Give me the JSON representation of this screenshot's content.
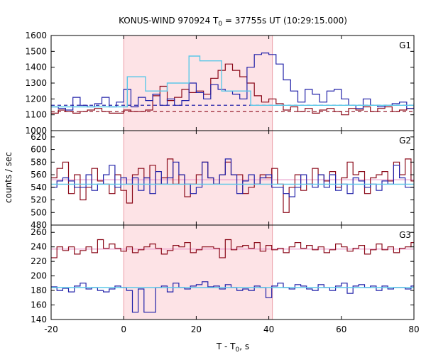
{
  "chart_data": {
    "type": "line",
    "title": "KONUS-WIND 970924 T",
    "title_sub": "0",
    "title_rest": " = 37755s UT (10:29:15.000)",
    "xlabel": "T - T",
    "xlabel_sub": "0",
    "xlabel_rest": ", s",
    "ylabel": "counts / sec",
    "xlim": [
      -20,
      80
    ],
    "xticks": [
      "-20",
      "0",
      "20",
      "40",
      "60",
      "80"
    ],
    "shaded_interval": [
      0,
      41
    ],
    "colors": {
      "red": "#8b0a1a",
      "blue": "#2020a8",
      "cyan": "#5bc8e8",
      "pink": "#e898c8",
      "shade": "#fde3e6"
    },
    "panels": [
      {
        "name": "G1",
        "ylim": [
          1000,
          1600
        ],
        "yticks": [
          "1000",
          "1100",
          "1200",
          "1300",
          "1400",
          "1500",
          "1600"
        ],
        "step": 2,
        "x_start": -20,
        "blue": [
          1150,
          1140,
          1130,
          1210,
          1160,
          1150,
          1170,
          1210,
          1150,
          1180,
          1260,
          1150,
          1210,
          1190,
          1230,
          1160,
          1200,
          1160,
          1190,
          1300,
          1240,
          1200,
          1290,
          1260,
          1250,
          1230,
          1200,
          1400,
          1480,
          1490,
          1480,
          1420,
          1320,
          1250,
          1180,
          1260,
          1230,
          1180,
          1250,
          1260,
          1200,
          1160,
          1140,
          1200,
          1160,
          1150,
          1160,
          1170,
          1180,
          1140,
          1170,
          1200,
          1140,
          1160,
          1150,
          1170,
          1160,
          1140,
          1160,
          1180
        ],
        "red": [
          1110,
          1130,
          1120,
          1110,
          1120,
          1130,
          1140,
          1120,
          1110,
          1110,
          1130,
          1120,
          1120,
          1130,
          1220,
          1280,
          1190,
          1210,
          1260,
          1240,
          1250,
          1230,
          1330,
          1380,
          1420,
          1380,
          1340,
          1300,
          1220,
          1180,
          1200,
          1170,
          1130,
          1150,
          1120,
          1140,
          1110,
          1130,
          1140,
          1120,
          1100,
          1140,
          1130,
          1150,
          1120,
          1140,
          1150,
          1120,
          1130,
          1140,
          1150,
          1130,
          1140,
          1130,
          1120,
          1140,
          1130,
          1120,
          1130,
          1140
        ],
        "cyan": [
          [
            -20,
            1150
          ],
          [
            1,
            1150
          ],
          [
            1,
            1340
          ],
          [
            6,
            1340
          ],
          [
            6,
            1250
          ],
          [
            12,
            1250
          ],
          [
            12,
            1300
          ],
          [
            18,
            1300
          ],
          [
            18,
            1470
          ],
          [
            21,
            1470
          ],
          [
            21,
            1440
          ],
          [
            27,
            1440
          ],
          [
            27,
            1250
          ],
          [
            35,
            1250
          ],
          [
            35,
            1160
          ],
          [
            80,
            1160
          ]
        ],
        "bg_blue": 1160,
        "bg_red": 1120,
        "dashed": true
      },
      {
        "name": "G2",
        "ylim": [
          480,
          630
        ],
        "yticks": [
          "480",
          "500",
          "520",
          "540",
          "560",
          "580",
          "600",
          "620"
        ],
        "step": 1.6,
        "x_start": -20,
        "blue": [
          540,
          550,
          555,
          550,
          540,
          540,
          560,
          535,
          545,
          560,
          575,
          540,
          555,
          545,
          555,
          535,
          555,
          530,
          565,
          545,
          555,
          580,
          560,
          545,
          530,
          540,
          580,
          555,
          545,
          560,
          585,
          560,
          530,
          550,
          560,
          545,
          555,
          560,
          540,
          540,
          530,
          525,
          540,
          560,
          545,
          540,
          560,
          540,
          560,
          535,
          545,
          530,
          555,
          550,
          540,
          545,
          535,
          550,
          545,
          575,
          555,
          540,
          540,
          555,
          520,
          560,
          540,
          560,
          545,
          540,
          530,
          545,
          555,
          540,
          545,
          535,
          530,
          570,
          555,
          610,
          540,
          530,
          560,
          545,
          545,
          555,
          535,
          545,
          560,
          540,
          540,
          550,
          540,
          540,
          560,
          550,
          545,
          545,
          535,
          540,
          545,
          545,
          545,
          540,
          555,
          555,
          560,
          560,
          565,
          550,
          540,
          555
        ],
        "red": [
          555,
          570,
          580,
          530,
          560,
          520,
          540,
          570,
          550,
          545,
          530,
          560,
          535,
          515,
          560,
          570,
          555,
          575,
          545,
          555,
          585,
          545,
          560,
          525,
          545,
          560,
          580,
          555,
          545,
          560,
          580,
          560,
          560,
          530,
          540,
          545,
          560,
          555,
          570,
          545,
          500,
          540,
          560,
          535,
          545,
          570,
          560,
          550,
          565,
          540,
          555,
          580,
          560,
          565,
          530,
          555,
          560,
          565,
          550,
          580,
          560,
          585,
          550,
          515,
          545,
          560,
          545,
          565,
          530,
          550,
          575,
          560,
          540,
          570,
          555,
          560,
          545,
          585,
          560,
          570,
          560,
          545,
          555,
          560,
          570,
          560,
          580,
          550,
          560,
          555,
          535,
          560,
          545,
          580,
          560,
          550,
          555,
          575,
          545,
          560,
          575,
          555,
          560,
          535,
          555,
          555,
          560,
          555,
          545,
          560,
          575,
          550
        ],
        "cyan": [
          [
            -20,
            545
          ],
          [
            80,
            545
          ]
        ],
        "pink": [
          [
            -20,
            552
          ],
          [
            80,
            552
          ]
        ],
        "dashed": false
      },
      {
        "name": "G3",
        "ylim": [
          140,
          270
        ],
        "yticks": [
          "140",
          "160",
          "180",
          "200",
          "220",
          "240",
          "260"
        ],
        "step": 1.6,
        "x_start": -20,
        "blue": [
          185,
          180,
          183,
          178,
          186,
          190,
          182,
          184,
          180,
          178,
          182,
          186,
          184,
          180,
          150,
          182,
          150,
          150,
          184,
          186,
          178,
          190,
          184,
          182,
          186,
          188,
          192,
          185,
          186,
          182,
          188,
          184,
          180,
          182,
          180,
          186,
          184,
          170,
          186,
          190,
          184,
          182,
          188,
          186,
          182,
          180,
          188,
          184,
          180,
          186,
          190,
          176,
          186,
          188,
          184,
          186,
          180,
          186,
          182,
          184,
          184,
          182,
          186,
          182,
          178,
          186,
          184,
          180,
          182,
          188,
          186,
          188,
          184,
          186,
          180,
          184,
          188,
          182,
          180,
          186,
          184,
          182,
          178,
          186,
          190,
          184,
          182,
          188,
          186,
          180,
          182,
          190,
          184,
          180,
          186,
          182,
          184,
          176,
          188,
          190,
          184,
          182,
          178,
          186,
          184,
          182,
          180,
          186,
          192,
          184,
          186,
          184
        ],
        "red": [
          225,
          240,
          235,
          240,
          230,
          235,
          240,
          232,
          250,
          238,
          244,
          238,
          234,
          240,
          232,
          236,
          240,
          244,
          238,
          230,
          235,
          242,
          240,
          246,
          232,
          236,
          240,
          240,
          238,
          225,
          250,
          236,
          240,
          242,
          238,
          246,
          234,
          242,
          236,
          238,
          232,
          240,
          246,
          238,
          242,
          236,
          240,
          232,
          236,
          244,
          240,
          234,
          238,
          242,
          230,
          236,
          244,
          236,
          240,
          232,
          238,
          240,
          246,
          236,
          234,
          240,
          250,
          232,
          240,
          236,
          234,
          242,
          238,
          244,
          232,
          238,
          240,
          236,
          242,
          234,
          240,
          238,
          236,
          246,
          234,
          240,
          236,
          244,
          232,
          238,
          240,
          236,
          230,
          240,
          244,
          236,
          238,
          234,
          240,
          236,
          242,
          240,
          246,
          232,
          238,
          240,
          234,
          242,
          236,
          240,
          246,
          232
        ],
        "cyan": [
          [
            -20,
            184
          ],
          [
            80,
            184
          ]
        ],
        "pink": [
          [
            -20,
            237
          ],
          [
            80,
            237
          ]
        ],
        "dashed": false
      }
    ]
  }
}
